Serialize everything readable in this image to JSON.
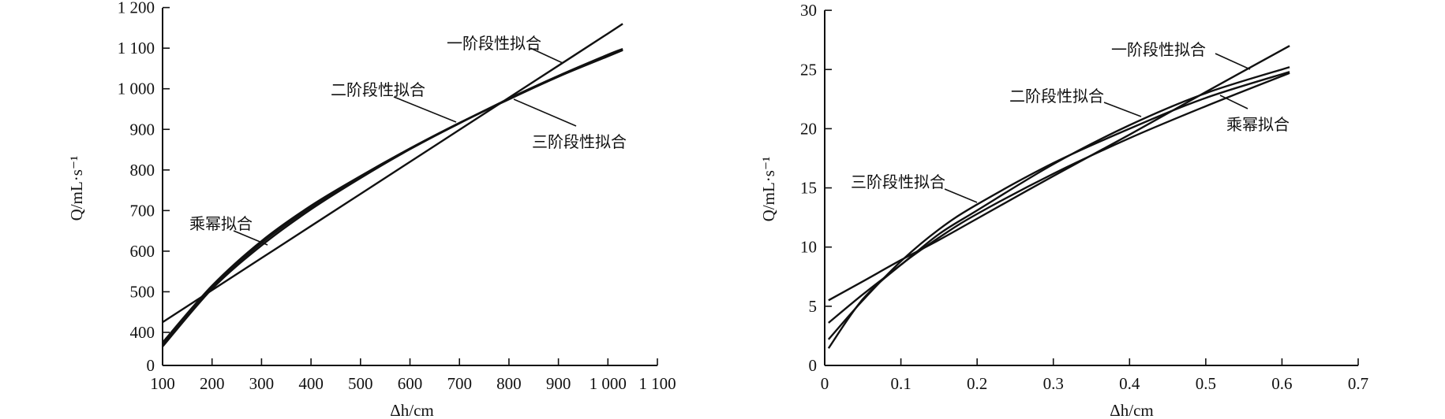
{
  "chart_data": [
    {
      "type": "line",
      "xlabel": "Δh/cm",
      "ylabel": "Q/mL·s⁻¹",
      "xlim": [
        100,
        1100
      ],
      "ylim": [
        0,
        1200
      ],
      "y_axis_break": "between 0 and 400",
      "grid": false,
      "x_ticks": [
        "100",
        "200",
        "300",
        "400",
        "500",
        "600",
        "700",
        "800",
        "900",
        "1 000",
        "1 100"
      ],
      "y_ticks": [
        "0",
        "400",
        "500",
        "600",
        "700",
        "800",
        "900",
        "1 000",
        "1 100",
        "1 200"
      ],
      "x": [
        100,
        200,
        300,
        400,
        500,
        600,
        700,
        800,
        900,
        1000,
        1030
      ],
      "series": [
        {
          "name": "一阶段性拟合",
          "values": [
            425,
            504,
            583,
            662,
            741,
            820,
            899,
            978,
            1057,
            1136,
            1160
          ]
        },
        {
          "name": "二阶段性拟合",
          "values": [
            375,
            515,
            625,
            712,
            785,
            853,
            916,
            975,
            1030,
            1080,
            1095
          ]
        },
        {
          "name": "三阶段性拟合",
          "values": [
            370,
            510,
            620,
            708,
            784,
            852,
            915,
            976,
            1032,
            1084,
            1098
          ]
        },
        {
          "name": "乘幂拟合",
          "values": [
            365,
            507,
            614,
            703,
            780,
            851,
            915,
            974,
            1030,
            1082,
            1096
          ]
        }
      ],
      "annotations": [
        "一阶段性拟合",
        "二阶段性拟合",
        "三阶段性拟合",
        "乘幂拟合"
      ],
      "line_color": "#111111"
    },
    {
      "type": "line",
      "xlabel": "Δh/cm",
      "ylabel": "Q/mL·s⁻¹",
      "xlim": [
        0,
        0.7
      ],
      "ylim": [
        0,
        30
      ],
      "grid": false,
      "x_ticks": [
        "0",
        "0.1",
        "0.2",
        "0.3",
        "0.4",
        "0.5",
        "0.6",
        "0.7"
      ],
      "y_ticks": [
        "0",
        "5",
        "10",
        "15",
        "20",
        "25",
        "30"
      ],
      "x": [
        0.005,
        0.05,
        0.1,
        0.15,
        0.2,
        0.3,
        0.4,
        0.5,
        0.61
      ],
      "series": [
        {
          "name": "一阶段性拟合",
          "values": [
            5.5,
            7.1,
            8.9,
            10.6,
            12.4,
            16.0,
            19.5,
            23.1,
            27.0
          ]
        },
        {
          "name": "二阶段性拟合",
          "values": [
            3.6,
            6.0,
            8.5,
            11.1,
            13.1,
            17.0,
            20.3,
            23.0,
            25.2
          ]
        },
        {
          "name": "三阶段性拟合",
          "values": [
            2.2,
            5.5,
            8.8,
            11.5,
            13.6,
            17.1,
            20.0,
            22.6,
            24.8
          ]
        },
        {
          "name": "乘幂拟合",
          "values": [
            1.45,
            5.6,
            8.5,
            10.8,
            12.8,
            16.2,
            19.2,
            21.9,
            24.7
          ]
        }
      ],
      "annotations": [
        "一阶段性拟合",
        "二阶段性拟合",
        "乘幂拟合",
        "三阶段性拟合"
      ],
      "line_color": "#111111"
    }
  ]
}
